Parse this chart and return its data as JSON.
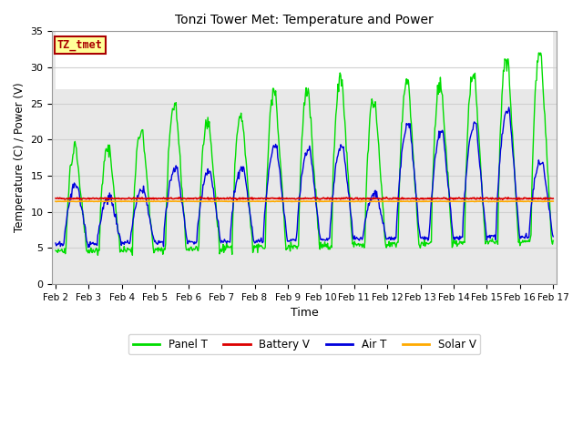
{
  "title": "Tonzi Tower Met: Temperature and Power",
  "xlabel": "Time",
  "ylabel": "Temperature (C) / Power (V)",
  "ylim": [
    0,
    35
  ],
  "xlim": [
    0,
    15
  ],
  "xtick_labels": [
    "Feb 2",
    "Feb 3",
    "Feb 4",
    "Feb 5",
    "Feb 6",
    "Feb 7",
    "Feb 8",
    "Feb 9",
    "Feb 10",
    "Feb 11",
    "Feb 12",
    "Feb 13",
    "Feb 14",
    "Feb 15",
    "Feb 16",
    "Feb 17"
  ],
  "xtick_positions": [
    0,
    1,
    2,
    3,
    4,
    5,
    6,
    7,
    8,
    9,
    10,
    11,
    12,
    13,
    14,
    15
  ],
  "ytick_labels": [
    "0",
    "5",
    "10",
    "15",
    "20",
    "25",
    "30",
    "35"
  ],
  "ytick_positions": [
    0,
    5,
    10,
    15,
    20,
    25,
    30,
    35
  ],
  "legend_entries": [
    "Panel T",
    "Battery V",
    "Air T",
    "Solar V"
  ],
  "panel_color": "#00dd00",
  "battery_color": "#dd0000",
  "air_color": "#0000dd",
  "solar_color": "#ffaa00",
  "bg_color": "#ffffff",
  "plot_bg_upper": "#ffffff",
  "plot_bg_lower": "#e8e8e8",
  "grid_color": "#d0d0d0",
  "label_box_color": "#ffff99",
  "label_box_edge": "#aa0000",
  "label_text": "TZ_tmet",
  "label_text_color": "#aa0000",
  "battery_level": 11.85,
  "solar_level": 11.45
}
